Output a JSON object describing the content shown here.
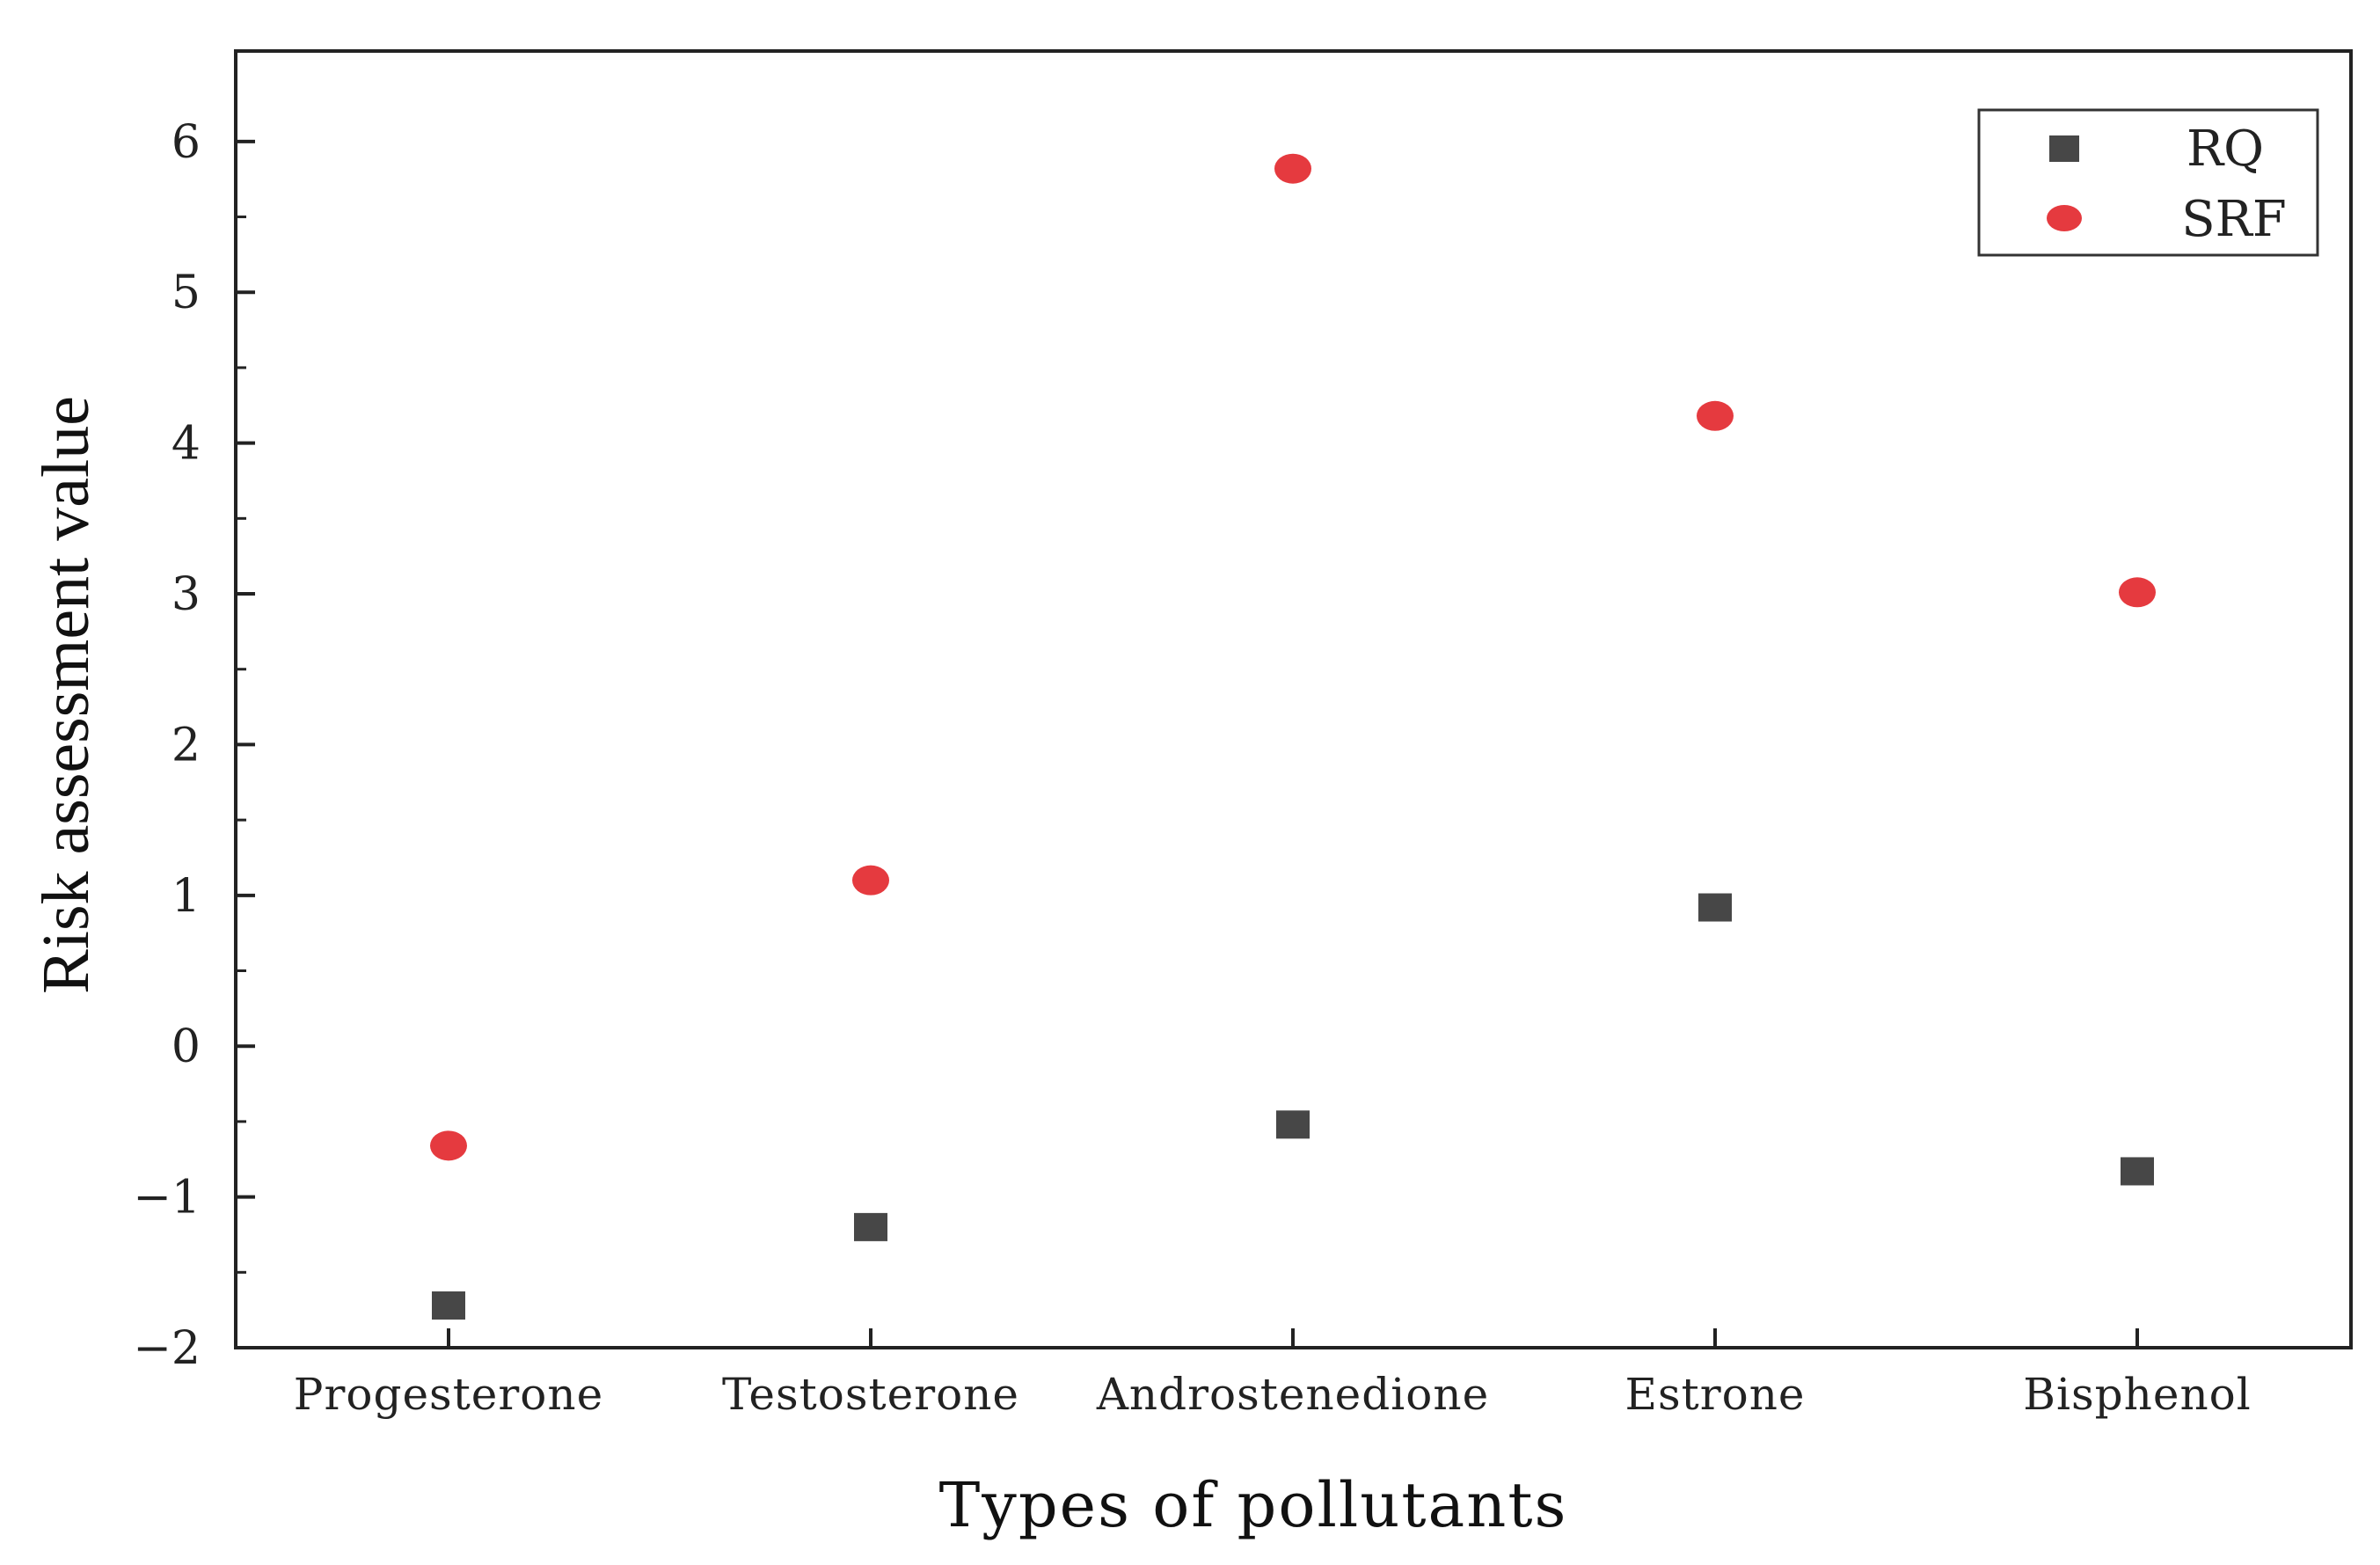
{
  "chart_data": {
    "type": "scatter",
    "title": "",
    "xlabel": "Types of pollutants",
    "ylabel": "Risk assessment value",
    "categories": [
      "Progesterone",
      "Testosterone",
      "Androstenedione",
      "Estrone",
      "Bisphenol"
    ],
    "ylim": [
      -2,
      6.6
    ],
    "yticks": [
      -2,
      -1,
      0,
      1,
      2,
      3,
      4,
      5,
      6
    ],
    "ytick_labels": [
      "−2",
      "−1",
      "0",
      "1",
      "2",
      "3",
      "4",
      "5",
      "6"
    ],
    "grid": false,
    "legend_position": "top-right",
    "series": [
      {
        "name": "RQ",
        "marker": "square",
        "color": "#474747",
        "values": [
          -1.72,
          -1.2,
          -0.52,
          0.92,
          -0.83
        ]
      },
      {
        "name": "SRF",
        "marker": "circle",
        "color": "#e53a3f",
        "values": [
          -0.66,
          1.1,
          5.82,
          4.18,
          3.01
        ]
      }
    ]
  }
}
